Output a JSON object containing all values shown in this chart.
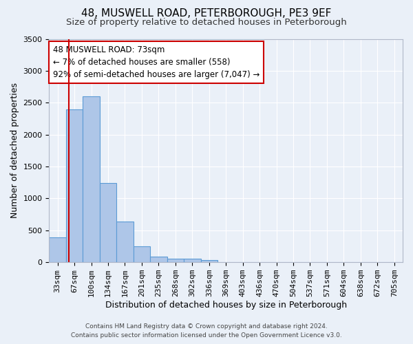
{
  "title": "48, MUSWELL ROAD, PETERBOROUGH, PE3 9EF",
  "subtitle": "Size of property relative to detached houses in Peterborough",
  "xlabel": "Distribution of detached houses by size in Peterborough",
  "ylabel": "Number of detached properties",
  "footer_line1": "Contains HM Land Registry data © Crown copyright and database right 2024.",
  "footer_line2": "Contains public sector information licensed under the Open Government Licence v3.0.",
  "bar_labels": [
    "33sqm",
    "67sqm",
    "100sqm",
    "134sqm",
    "167sqm",
    "201sqm",
    "235sqm",
    "268sqm",
    "302sqm",
    "336sqm",
    "369sqm",
    "403sqm",
    "436sqm",
    "470sqm",
    "504sqm",
    "537sqm",
    "571sqm",
    "604sqm",
    "638sqm",
    "672sqm",
    "705sqm"
  ],
  "bar_values": [
    390,
    2400,
    2600,
    1240,
    640,
    255,
    90,
    60,
    55,
    40,
    0,
    0,
    0,
    0,
    0,
    0,
    0,
    0,
    0,
    0,
    0
  ],
  "bar_color": "#aec6e8",
  "bar_edge_color": "#5b9bd5",
  "annotation_text": "48 MUSWELL ROAD: 73sqm\n← 7% of detached houses are smaller (558)\n92% of semi-detached houses are larger (7,047) →",
  "annotation_box_color": "#ffffff",
  "annotation_box_edge_color": "#cc0000",
  "vline_color": "#cc0000",
  "ylim": [
    0,
    3500
  ],
  "yticks": [
    0,
    500,
    1000,
    1500,
    2000,
    2500,
    3000,
    3500
  ],
  "background_color": "#eaf0f8",
  "plot_background": "#eaf0f8",
  "grid_color": "#ffffff",
  "title_fontsize": 11,
  "subtitle_fontsize": 9.5,
  "xlabel_fontsize": 9,
  "ylabel_fontsize": 9,
  "tick_fontsize": 8,
  "annotation_fontsize": 8.5,
  "footer_fontsize": 6.5
}
